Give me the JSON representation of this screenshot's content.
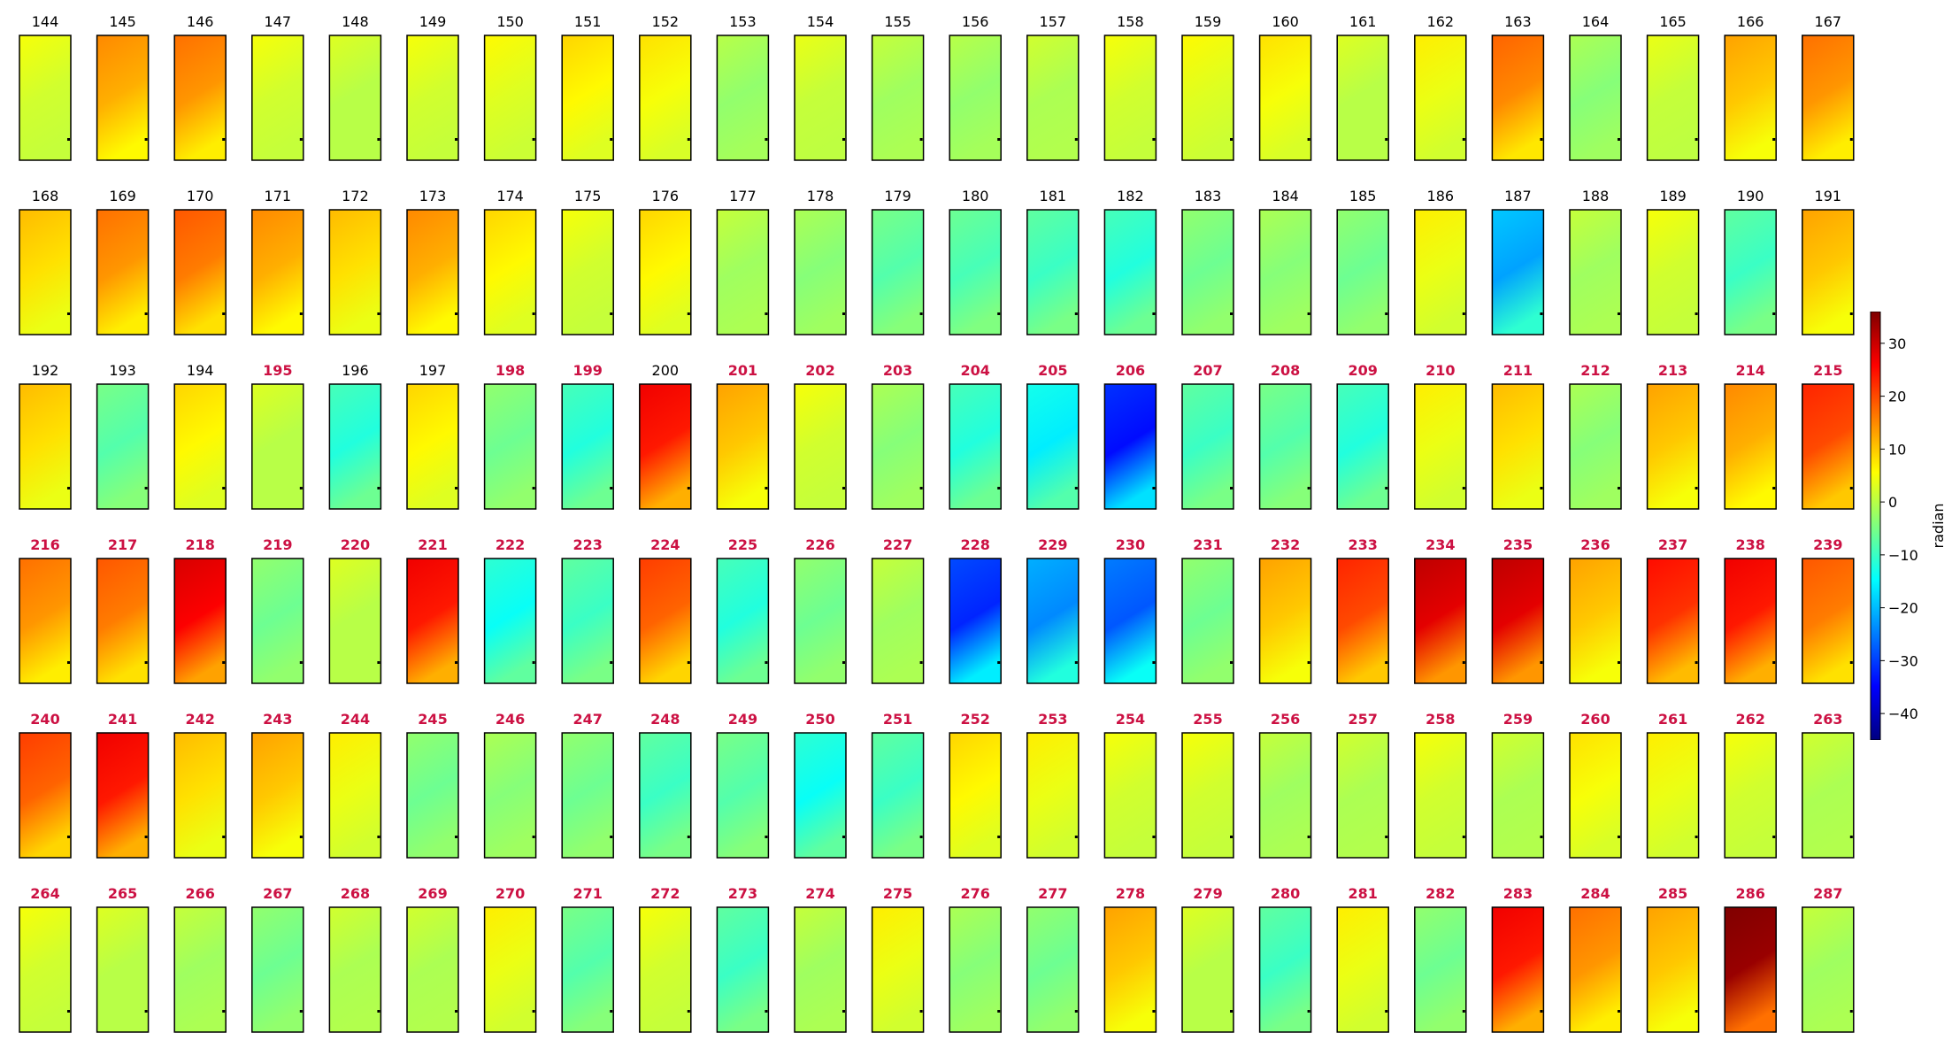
{
  "chart_data": {
    "type": "heatmap",
    "title": "",
    "panels_per_row": 24,
    "rows": 6,
    "dates": [
      144,
      145,
      146,
      147,
      148,
      149,
      150,
      151,
      152,
      153,
      154,
      155,
      156,
      157,
      158,
      159,
      160,
      161,
      162,
      163,
      164,
      165,
      166,
      167,
      168,
      169,
      170,
      171,
      172,
      173,
      174,
      175,
      176,
      177,
      178,
      179,
      180,
      181,
      182,
      183,
      184,
      185,
      186,
      187,
      188,
      189,
      190,
      191,
      192,
      193,
      194,
      195,
      196,
      197,
      198,
      199,
      200,
      201,
      202,
      203,
      204,
      205,
      206,
      207,
      208,
      209,
      210,
      211,
      212,
      213,
      214,
      215,
      216,
      217,
      218,
      219,
      220,
      221,
      222,
      223,
      224,
      225,
      226,
      227,
      228,
      229,
      230,
      231,
      232,
      233,
      234,
      235,
      236,
      237,
      238,
      239,
      240,
      241,
      242,
      243,
      244,
      245,
      246,
      247,
      248,
      249,
      250,
      251,
      252,
      253,
      254,
      255,
      256,
      257,
      258,
      259,
      260,
      261,
      262,
      263,
      264,
      265,
      266,
      267,
      268,
      269,
      270,
      271,
      272,
      273,
      274,
      275,
      276,
      277,
      278,
      279,
      280,
      281,
      282,
      283,
      284,
      285,
      286,
      287
    ],
    "highlighted": [
      195,
      198,
      199,
      201,
      202,
      203,
      204,
      205,
      206,
      207,
      208,
      209,
      210,
      211,
      212,
      213,
      214,
      215,
      216,
      217,
      218,
      219,
      220,
      221,
      222,
      223,
      224,
      225,
      226,
      227,
      228,
      229,
      230,
      231,
      232,
      233,
      234,
      235,
      236,
      237,
      238,
      239,
      240,
      241,
      242,
      243,
      244,
      245,
      246,
      247,
      248,
      249,
      250,
      251,
      252,
      253,
      254,
      255,
      256,
      257,
      258,
      259,
      260,
      261,
      262,
      263,
      264,
      265,
      266,
      267,
      268,
      269,
      270,
      271,
      272,
      273,
      274,
      275,
      276,
      277,
      278,
      279,
      280,
      281,
      282,
      283,
      284,
      285,
      286,
      287
    ],
    "panel_values": [
      [
        2,
        12,
        14,
        2,
        0,
        2,
        3,
        6,
        5,
        -3,
        1,
        -2,
        -3,
        -1,
        2,
        3,
        5,
        0,
        4,
        15,
        -4,
        1,
        10,
        14
      ],
      [
        8,
        14,
        16,
        12,
        8,
        12,
        6,
        2,
        6,
        -2,
        -4,
        -8,
        -9,
        -10,
        -12,
        -6,
        -4,
        -6,
        4,
        -22,
        -2,
        2,
        -10,
        10
      ],
      [
        8,
        -8,
        6,
        0,
        -12,
        6,
        -6,
        -12,
        24,
        10,
        2,
        -4,
        -12,
        -16,
        -34,
        -10,
        -8,
        -12,
        4,
        8,
        -4,
        10,
        12,
        20
      ],
      [
        14,
        16,
        26,
        -6,
        0,
        24,
        -14,
        -10,
        18,
        -12,
        -6,
        -2,
        -32,
        -24,
        -28,
        -6,
        10,
        20,
        28,
        28,
        10,
        22,
        24,
        16
      ],
      [
        18,
        24,
        8,
        10,
        4,
        -6,
        -4,
        -6,
        -10,
        -8,
        -14,
        -10,
        6,
        4,
        2,
        2,
        -2,
        -1,
        2,
        -1,
        5,
        4,
        2,
        -1
      ],
      [
        2,
        0,
        -2,
        -6,
        -1,
        -1,
        4,
        -8,
        2,
        -10,
        -2,
        4,
        -4,
        -6,
        10,
        0,
        -10,
        4,
        -6,
        24,
        14,
        10,
        34,
        -2
      ]
    ],
    "colorbar": {
      "label": "radian",
      "min": -45,
      "max": 36,
      "ticks": [
        30,
        20,
        10,
        0,
        -10,
        -20,
        -30,
        -40
      ],
      "colormap": "jet"
    },
    "colors": {
      "label_normal": "#000000",
      "label_highlight": "#cc1143",
      "panel_border": "#000000"
    }
  }
}
